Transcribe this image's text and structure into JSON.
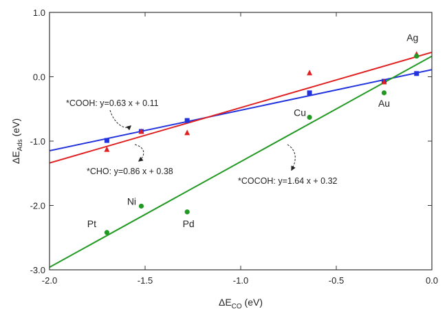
{
  "chart_data": {
    "type": "scatter",
    "xlabel": {
      "base": "ΔE",
      "sub": "CO",
      "unit": " (eV)"
    },
    "ylabel": {
      "base": "ΔE",
      "sub": "Ads",
      "unit": " (eV)"
    },
    "xlim": [
      -2.0,
      0.0
    ],
    "ylim": [
      -3.0,
      1.0
    ],
    "x_ticks": [
      -2.0,
      -1.5,
      -1.0,
      -0.5,
      0.0
    ],
    "x_tick_labels": [
      "-2.0",
      "-1.5",
      "-1.0",
      "-0.5",
      "0.0"
    ],
    "y_ticks": [
      -3.0,
      -2.0,
      -1.0,
      0.0,
      1.0
    ],
    "y_tick_labels": [
      "-3.0",
      "-2.0",
      "-1.0",
      "0.0",
      "1.0"
    ],
    "grid": false,
    "colors": {
      "cooh": "#2233dd",
      "cho": "#e02020",
      "cocoh": "#229922"
    },
    "metals": [
      {
        "name": "Pt",
        "x": -1.7
      },
      {
        "name": "Ni",
        "x": -1.52
      },
      {
        "name": "Pd",
        "x": -1.28
      },
      {
        "name": "Cu",
        "x": -0.64
      },
      {
        "name": "Au",
        "x": -0.25
      },
      {
        "name": "Ag",
        "x": -0.08
      }
    ],
    "series": [
      {
        "key": "cooh",
        "marker": "square",
        "x": [
          -1.7,
          -1.52,
          -1.28,
          -0.64,
          -0.25,
          -0.08
        ],
        "y": [
          -0.99,
          -0.85,
          -0.68,
          -0.25,
          -0.07,
          0.05
        ],
        "fit": {
          "slope": 0.63,
          "intercept": 0.11,
          "label": "*COOH: y=0.63 x + 0.11"
        }
      },
      {
        "key": "cho",
        "marker": "triangle",
        "x": [
          -1.7,
          -1.52,
          -1.28,
          -0.64,
          -0.25,
          -0.08
        ],
        "y": [
          -1.13,
          -0.85,
          -0.87,
          0.06,
          -0.08,
          0.35
        ],
        "fit": {
          "slope": 0.86,
          "intercept": 0.38,
          "label": "*CHO: y=0.86 x + 0.38"
        }
      },
      {
        "key": "cocoh",
        "marker": "circle",
        "x": [
          -1.7,
          -1.52,
          -1.28,
          -0.64,
          -0.25,
          -0.08
        ],
        "y": [
          -2.42,
          -2.01,
          -2.1,
          -0.63,
          -0.25,
          0.32
        ],
        "fit": {
          "slope": 1.64,
          "intercept": 0.32,
          "label": "*COCOH: y=1.64 x + 0.32"
        }
      }
    ]
  }
}
